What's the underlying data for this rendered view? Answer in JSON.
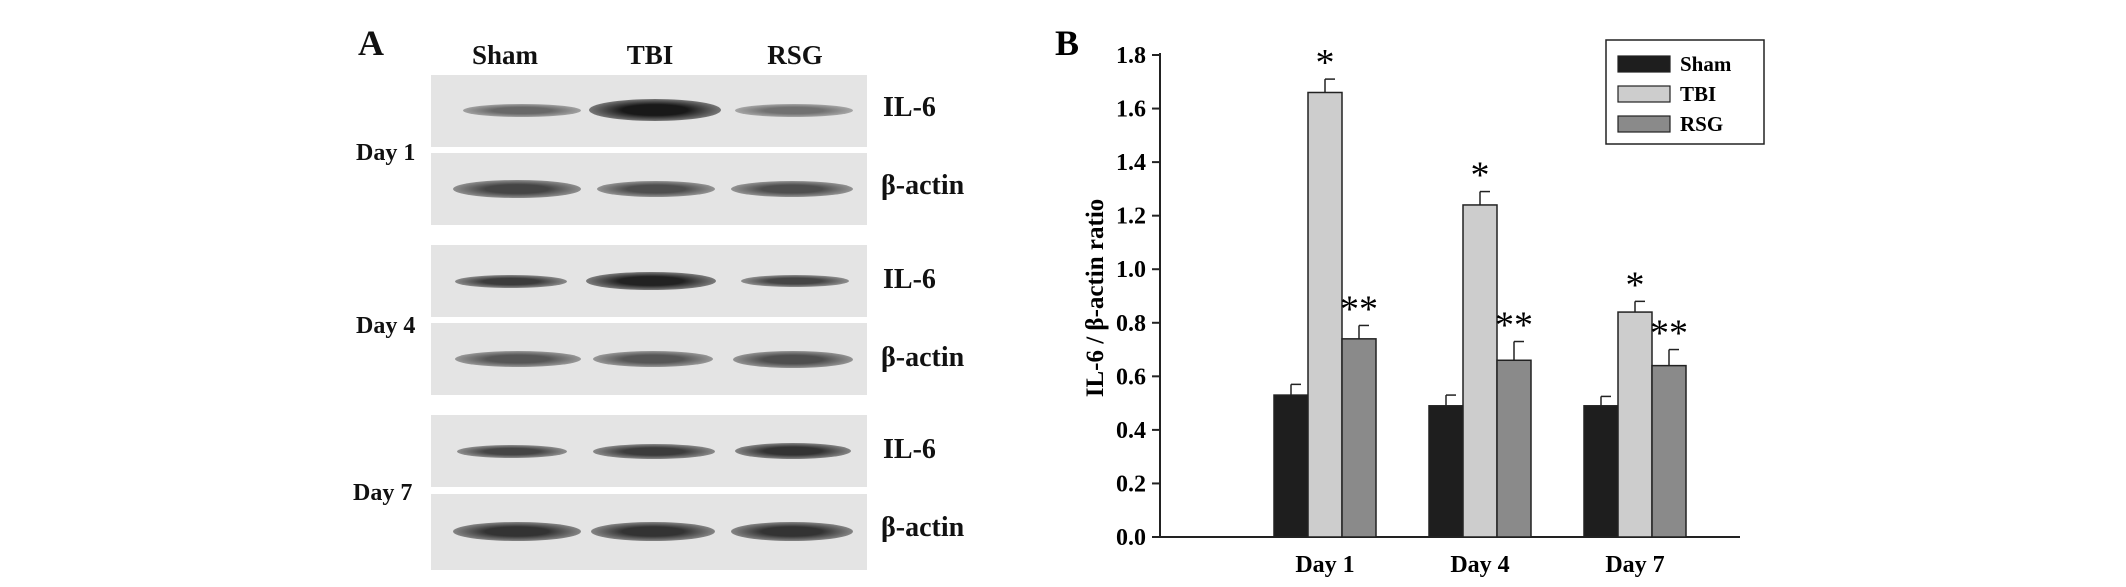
{
  "panel_a": {
    "letter": "A",
    "lanes": [
      "Sham",
      "TBI",
      "RSG"
    ],
    "blocks": [
      {
        "day": "Day 1",
        "rows": [
          {
            "label": "IL-6",
            "band_intensity": [
              0.55,
              1.0,
              0.5
            ]
          },
          {
            "label": "β-actin",
            "band_intensity": [
              0.75,
              0.7,
              0.7
            ]
          }
        ]
      },
      {
        "day": "Day 4",
        "rows": [
          {
            "label": "IL-6",
            "band_intensity": [
              0.8,
              0.95,
              0.75
            ]
          },
          {
            "label": "β-actin",
            "band_intensity": [
              0.65,
              0.65,
              0.7
            ]
          }
        ]
      },
      {
        "day": "Day 7",
        "rows": [
          {
            "label": "IL-6",
            "band_intensity": [
              0.75,
              0.8,
              0.85
            ]
          },
          {
            "label": "β-actin",
            "band_intensity": [
              0.85,
              0.85,
              0.85
            ]
          }
        ]
      }
    ]
  },
  "panel_b": {
    "letter": "B",
    "colors": {
      "Sham": "#1e1e1e",
      "TBI": "#cdcdcd",
      "RSG": "#8a8a8a"
    }
  },
  "chart_data": {
    "type": "bar",
    "categories": [
      "Day 1",
      "Day 4",
      "Day 7"
    ],
    "series": [
      {
        "name": "Sham",
        "values": [
          0.53,
          0.49,
          0.49
        ],
        "errors": [
          0.04,
          0.04,
          0.035
        ],
        "marks": [
          "",
          "",
          ""
        ]
      },
      {
        "name": "TBI",
        "values": [
          1.66,
          1.24,
          0.84
        ],
        "errors": [
          0.05,
          0.05,
          0.04
        ],
        "marks": [
          "*",
          "*",
          "*"
        ]
      },
      {
        "name": "RSG",
        "values": [
          0.74,
          0.66,
          0.64
        ],
        "errors": [
          0.05,
          0.07,
          0.06
        ],
        "marks": [
          "**",
          "**",
          "**"
        ]
      }
    ],
    "title": "",
    "xlabel": "",
    "ylabel": "IL-6 / β-actin ratio",
    "ylim": [
      0,
      1.8
    ],
    "yticks": [
      "0.0",
      "0.2",
      "0.4",
      "0.6",
      "0.8",
      "1.0",
      "1.2",
      "1.4",
      "1.6",
      "1.8"
    ],
    "legend": {
      "placement": "top-right",
      "entries": [
        "Sham",
        "TBI",
        "RSG"
      ]
    },
    "grid": false
  }
}
